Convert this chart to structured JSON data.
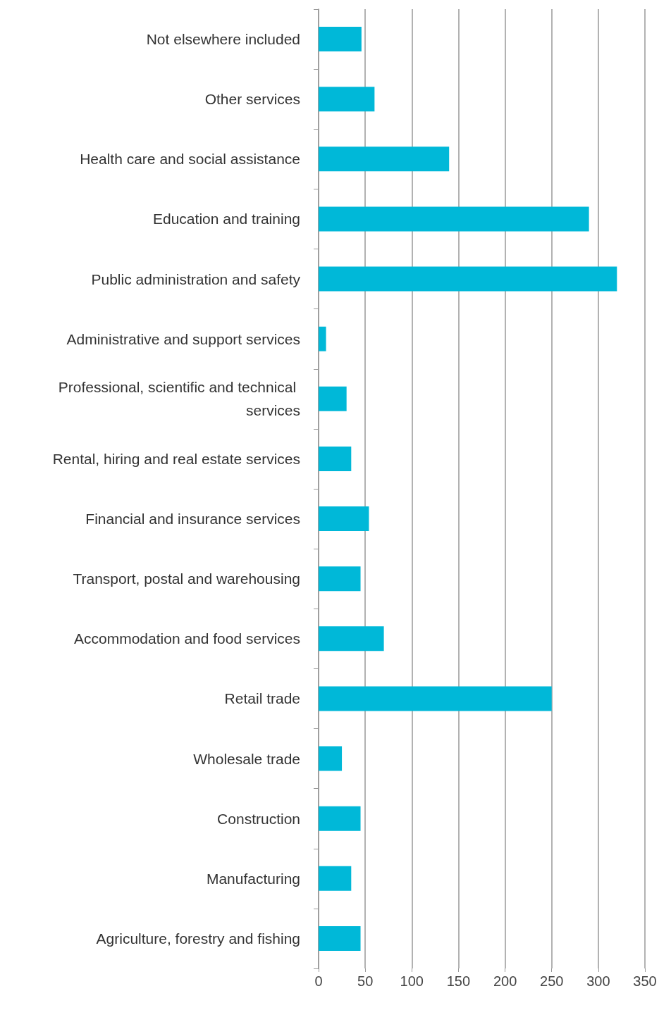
{
  "chart_data": {
    "type": "bar",
    "orientation": "horizontal",
    "categories": [
      "Not elsewhere included",
      "Other services",
      "Health care and social assistance",
      "Education and training",
      "Public administration and safety",
      "Administrative and support services",
      "Professional, scientific and technical services",
      "Rental, hiring and real estate services",
      "Financial and insurance services",
      "Transport, postal and warehousing",
      "Accommodation and food services",
      "Retail trade",
      "Wholesale trade",
      "Construction",
      "Manufacturing",
      "Agriculture, forestry and fishing"
    ],
    "values": [
      46,
      60,
      140,
      290,
      320,
      8,
      30,
      35,
      54,
      45,
      70,
      250,
      25,
      45,
      35,
      45
    ],
    "color": "#00b8d8",
    "xlim": [
      0,
      350
    ],
    "xticks": [
      0,
      50,
      100,
      150,
      200,
      250,
      300,
      350
    ],
    "grid": "x"
  }
}
